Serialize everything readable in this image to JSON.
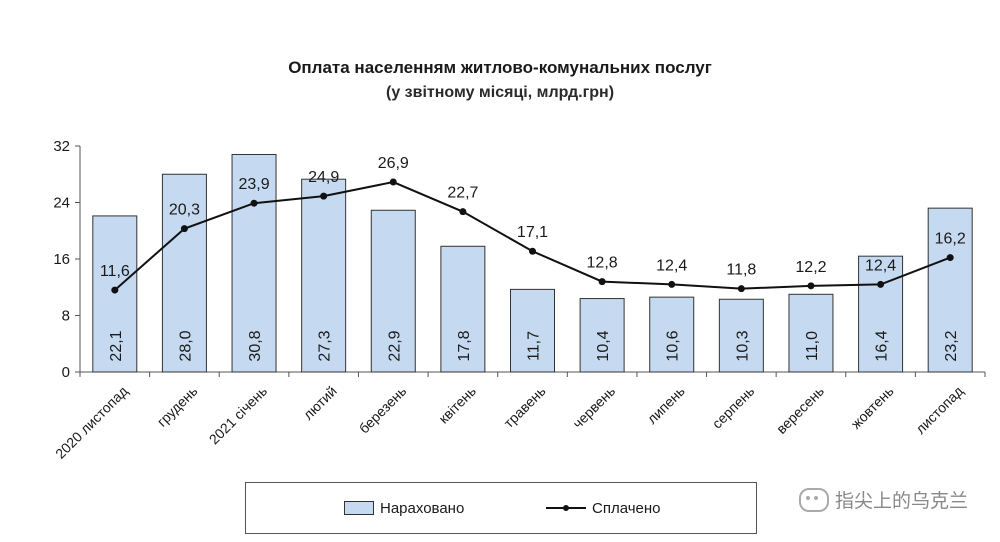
{
  "chart_data": {
    "type": "bar",
    "title": "Оплата населенням житлово-комунальних послуг",
    "subtitle": "(у звітному місяці, млрд.грн)",
    "categories": [
      "2020 листопад",
      "грудень",
      "2021 січень",
      "лютий",
      "березень",
      "квітень",
      "травень",
      "червень",
      "липень",
      "серпень",
      "вересень",
      "жовтень",
      "листопад"
    ],
    "ylim": [
      0,
      32
    ],
    "yticks": [
      0,
      8,
      16,
      24,
      32
    ],
    "grid": false,
    "legend_position": "bottom",
    "series": [
      {
        "name": "Нараховано",
        "type": "bar",
        "color": "#c5daf0",
        "values": [
          22.1,
          28.0,
          30.8,
          27.3,
          22.9,
          17.8,
          11.7,
          10.4,
          10.6,
          10.3,
          11.0,
          16.4,
          23.2
        ],
        "labels": [
          "22,1",
          "28,0",
          "30,8",
          "27,3",
          "22,9",
          "17,8",
          "11,7",
          "10,4",
          "10,6",
          "10,3",
          "11,0",
          "16,4",
          "23,2"
        ]
      },
      {
        "name": "Сплачено",
        "type": "line",
        "color": "#111111",
        "values": [
          11.6,
          20.3,
          23.9,
          24.9,
          26.9,
          22.7,
          17.1,
          12.8,
          12.4,
          11.8,
          12.2,
          12.4,
          16.2
        ],
        "labels": [
          "11,6",
          "20,3",
          "23,9",
          "24,9",
          "26,9",
          "22,7",
          "17,1",
          "12,8",
          "12,4",
          "11,8",
          "12,2",
          "12,4",
          "16,2"
        ]
      }
    ]
  },
  "watermark": "指尖上的乌克兰"
}
